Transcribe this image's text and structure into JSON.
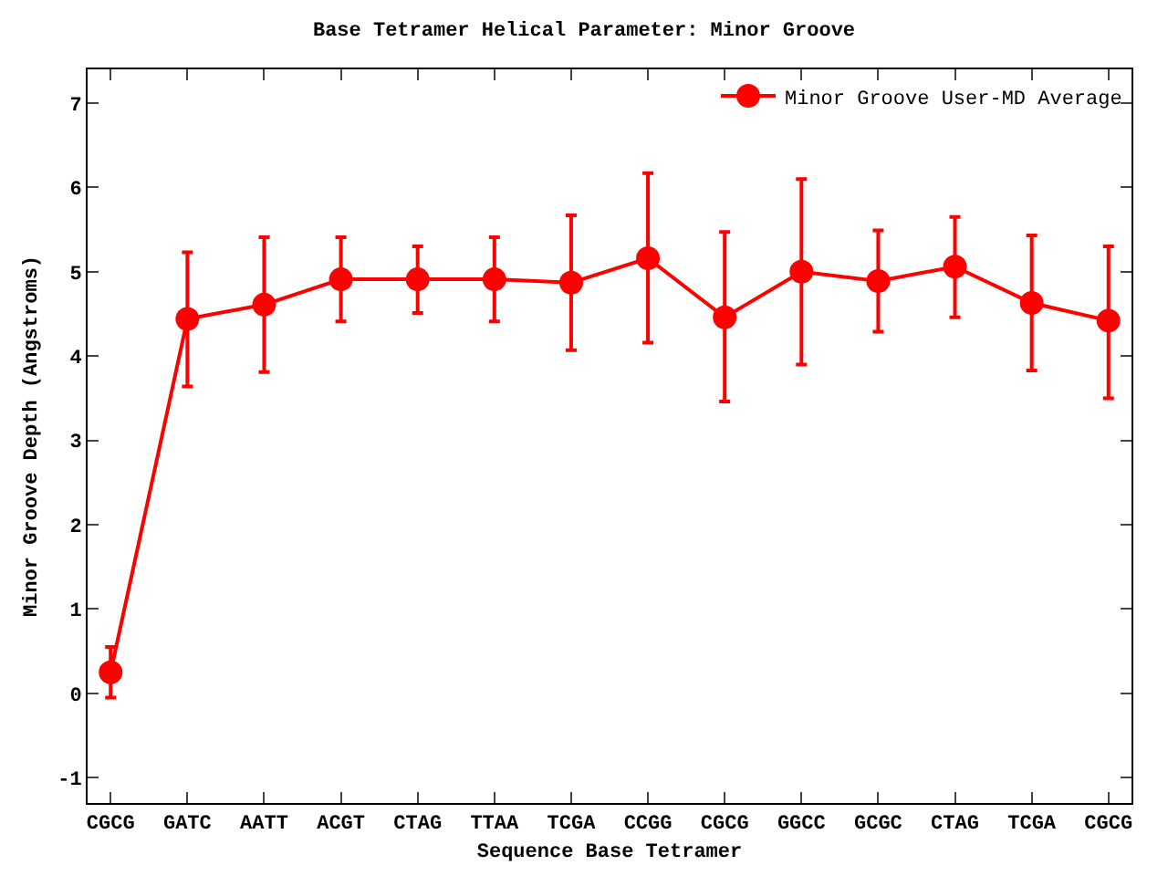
{
  "chart_data": {
    "type": "line",
    "title": "Base Tetramer Helical Parameter: Minor Groove",
    "xlabel": "Sequence Base Tetramer",
    "ylabel": "Minor Groove Depth (Angstroms)",
    "categories": [
      "CGCG",
      "GATC",
      "AATT",
      "ACGT",
      "CTAG",
      "TTAA",
      "TCGA",
      "CCGG",
      "CGCG",
      "GGCC",
      "GCGC",
      "CTAG",
      "TCGA",
      "CGCG"
    ],
    "series": [
      {
        "name": "Minor Groove User-MD Average",
        "color": "#ff0000",
        "values": [
          0.25,
          4.44,
          4.61,
          4.91,
          4.91,
          4.91,
          4.87,
          5.16,
          4.46,
          5.0,
          4.89,
          5.06,
          4.63,
          4.42
        ],
        "errors": [
          [
            -0.05,
            0.55
          ],
          [
            3.64,
            5.23
          ],
          [
            3.81,
            5.41
          ],
          [
            4.41,
            5.41
          ],
          [
            4.51,
            5.3
          ],
          [
            4.41,
            5.41
          ],
          [
            4.07,
            5.67
          ],
          [
            4.16,
            6.17
          ],
          [
            3.46,
            5.47
          ],
          [
            3.9,
            6.1
          ],
          [
            4.29,
            5.49
          ],
          [
            4.46,
            5.65
          ],
          [
            3.83,
            5.43
          ],
          [
            3.5,
            5.3
          ]
        ]
      }
    ],
    "ylim": [
      -1.3,
      7.4
    ],
    "yticks": [
      -1,
      0,
      1,
      2,
      3,
      4,
      5,
      6,
      7
    ],
    "grid": false,
    "legend": "top right",
    "marker": "circle",
    "line_style": "solid"
  }
}
